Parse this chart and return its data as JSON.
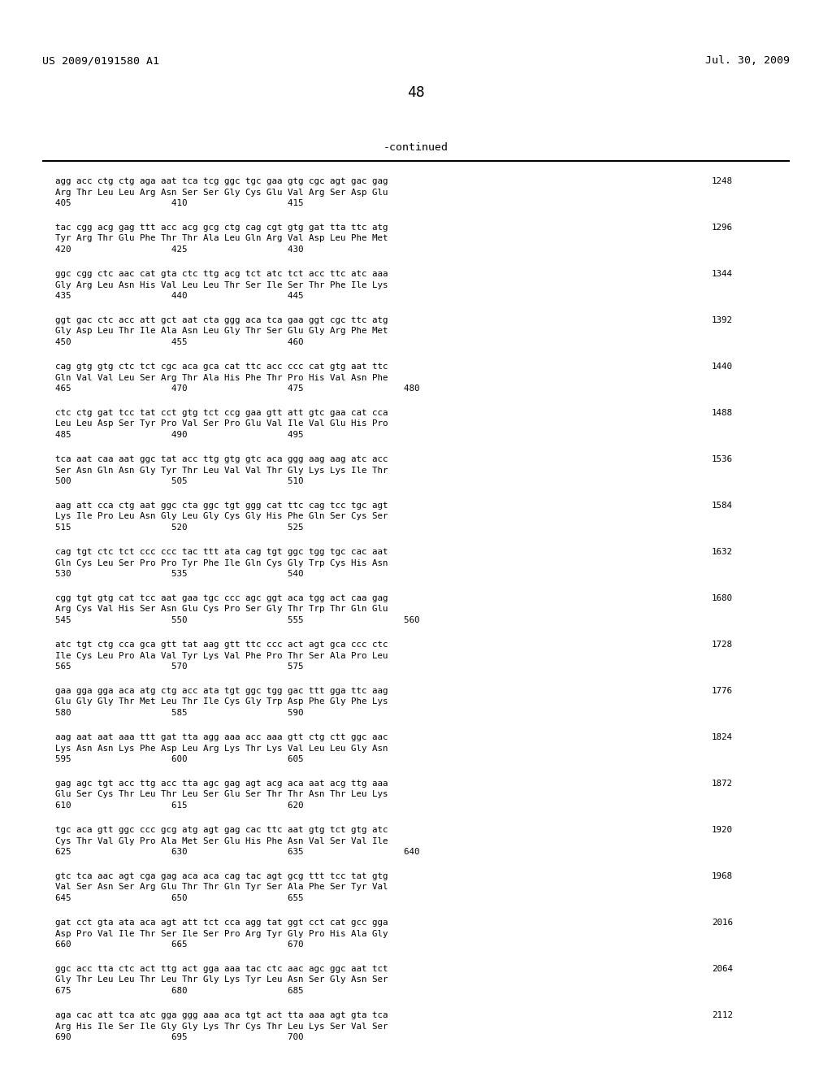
{
  "header_left": "US 2009/0191580 A1",
  "header_right": "Jul. 30, 2009",
  "page_number": "48",
  "continued_label": "-continued",
  "background_color": "#ffffff",
  "text_color": "#000000",
  "content": [
    {
      "dna": "agg acc ctg ctg aga aat tca tcg ggc tgc gaa gtg cgc agt gac gag",
      "num": "1248",
      "aa": "Arg Thr Leu Leu Arg Asn Ser Ser Gly Cys Glu Val Arg Ser Asp Glu",
      "pos": "405                   410                   415"
    },
    {
      "dna": "tac cgg acg gag ttt acc acg gcg ctg cag cgt gtg gat tta ttc atg",
      "num": "1296",
      "aa": "Tyr Arg Thr Glu Phe Thr Thr Ala Leu Gln Arg Val Asp Leu Phe Met",
      "pos": "420                   425                   430"
    },
    {
      "dna": "ggc cgg ctc aac cat gta ctc ttg acg tct atc tct acc ttc atc aaa",
      "num": "1344",
      "aa": "Gly Arg Leu Asn His Val Leu Leu Thr Ser Ile Ser Thr Phe Ile Lys",
      "pos": "435                   440                   445"
    },
    {
      "dna": "ggt gac ctc acc att gct aat cta ggg aca tca gaa ggt cgc ttc atg",
      "num": "1392",
      "aa": "Gly Asp Leu Thr Ile Ala Asn Leu Gly Thr Ser Glu Gly Arg Phe Met",
      "pos": "450                   455                   460"
    },
    {
      "dna": "cag gtg gtg ctc tct cgc aca gca cat ttc acc ccc cat gtg aat ttc",
      "num": "1440",
      "aa": "Gln Val Val Leu Ser Arg Thr Ala His Phe Thr Pro His Val Asn Phe",
      "pos": "465                   470                   475                   480"
    },
    {
      "dna": "ctc ctg gat tcc tat cct gtg tct ccg gaa gtt att gtc gaa cat cca",
      "num": "1488",
      "aa": "Leu Leu Asp Ser Tyr Pro Val Ser Pro Glu Val Ile Val Glu His Pro",
      "pos": "485                   490                   495"
    },
    {
      "dna": "tca aat caa aat ggc tat acc ttg gtg gtc aca ggg aag aag atc acc",
      "num": "1536",
      "aa": "Ser Asn Gln Asn Gly Tyr Thr Leu Val Val Thr Gly Lys Lys Ile Thr",
      "pos": "500                   505                   510"
    },
    {
      "dna": "aag att cca ctg aat ggc cta ggc tgt ggg cat ttc cag tcc tgc agt",
      "num": "1584",
      "aa": "Lys Ile Pro Leu Asn Gly Leu Gly Cys Gly His Phe Gln Ser Cys Ser",
      "pos": "515                   520                   525"
    },
    {
      "dna": "cag tgt ctc tct ccc ccc tac ttt ata cag tgt ggc tgg tgc cac aat",
      "num": "1632",
      "aa": "Gln Cys Leu Ser Pro Pro Tyr Phe Ile Gln Cys Gly Trp Cys His Asn",
      "pos": "530                   535                   540"
    },
    {
      "dna": "cgg tgt gtg cat tcc aat gaa tgc ccc agc ggt aca tgg act caa gag",
      "num": "1680",
      "aa": "Arg Cys Val His Ser Asn Glu Cys Pro Ser Gly Thr Trp Thr Gln Glu",
      "pos": "545                   550                   555                   560"
    },
    {
      "dna": "atc tgt ctg cca gca gtt tat aag gtt ttc ccc act agt gca ccc ctc",
      "num": "1728",
      "aa": "Ile Cys Leu Pro Ala Val Tyr Lys Val Phe Pro Thr Ser Ala Pro Leu",
      "pos": "565                   570                   575"
    },
    {
      "dna": "gaa gga gga aca atg ctg acc ata tgt ggc tgg gac ttt gga ttc aag",
      "num": "1776",
      "aa": "Glu Gly Gly Thr Met Leu Thr Ile Cys Gly Trp Asp Phe Gly Phe Lys",
      "pos": "580                   585                   590"
    },
    {
      "dna": "aag aat aat aaa ttt gat tta agg aaa acc aaa gtt ctg ctt ggc aac",
      "num": "1824",
      "aa": "Lys Asn Asn Lys Phe Asp Leu Arg Lys Thr Lys Val Leu Leu Gly Asn",
      "pos": "595                   600                   605"
    },
    {
      "dna": "gag agc tgt acc ttg acc tta agc gag agt acg aca aat acg ttg aaa",
      "num": "1872",
      "aa": "Glu Ser Cys Thr Leu Thr Leu Ser Glu Ser Thr Thr Asn Thr Leu Lys",
      "pos": "610                   615                   620"
    },
    {
      "dna": "tgc aca gtt ggc ccc gcg atg agt gag cac ttc aat gtg tct gtg atc",
      "num": "1920",
      "aa": "Cys Thr Val Gly Pro Ala Met Ser Glu His Phe Asn Val Ser Val Ile",
      "pos": "625                   630                   635                   640"
    },
    {
      "dna": "gtc tca aac agt cga gag aca aca cag tac agt gcg ttt tcc tat gtg",
      "num": "1968",
      "aa": "Val Ser Asn Ser Arg Glu Thr Thr Gln Tyr Ser Ala Phe Ser Tyr Val",
      "pos": "645                   650                   655"
    },
    {
      "dna": "gat cct gta ata aca agt att tct cca agg tat ggt cct cat gcc gga",
      "num": "2016",
      "aa": "Asp Pro Val Ile Thr Ser Ile Ser Pro Arg Tyr Gly Pro His Ala Gly",
      "pos": "660                   665                   670"
    },
    {
      "dna": "ggc acc tta ctc act ttg act gga aaa tac ctc aac agc ggc aat tct",
      "num": "2064",
      "aa": "Gly Thr Leu Leu Thr Leu Thr Gly Lys Tyr Leu Asn Ser Gly Asn Ser",
      "pos": "675                   680                   685"
    },
    {
      "dna": "aga cac att tca atc gga ggg aaa aca tgt act tta aaa agt gta tca",
      "num": "2112",
      "aa": "Arg His Ile Ser Ile Gly Gly Lys Thr Cys Thr Leu Lys Ser Val Ser",
      "pos": "690                   695                   700"
    }
  ]
}
